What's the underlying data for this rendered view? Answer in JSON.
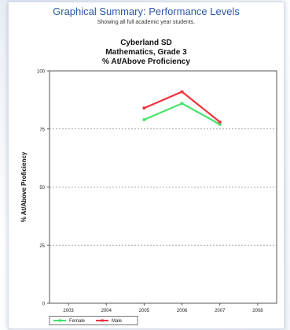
{
  "header": {
    "title": "Graphical Summary: Performance Levels",
    "subtitle": "Showing all full academic year students."
  },
  "chart_data": {
    "type": "line",
    "title_lines": [
      "Cyberland SD",
      "Mathematics, Grade  3",
      "% At/Above Proficiency"
    ],
    "xlabel": "",
    "ylabel": "% At/Above Proficiency",
    "x": [
      "2003",
      "2004",
      "2005",
      "2006",
      "2007",
      "2008"
    ],
    "ylim": [
      0,
      100
    ],
    "yticks": [
      "0",
      "25",
      "50",
      "75",
      "100"
    ],
    "grid": true,
    "legend_placement": "bottom",
    "series": [
      {
        "name": "Female",
        "color": "#44e36a",
        "values": [
          null,
          null,
          79,
          86,
          77,
          null
        ]
      },
      {
        "name": "Male",
        "color": "#f0323c",
        "values": [
          null,
          null,
          84,
          91,
          78,
          null
        ]
      }
    ]
  }
}
